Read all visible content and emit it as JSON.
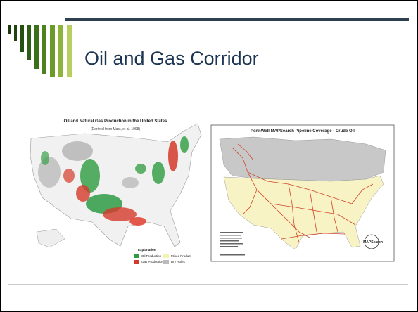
{
  "slide": {
    "title": "Oil and Gas Corridor"
  },
  "left_map": {
    "title": "Oil and Natural Gas Production in the United States",
    "subtitle": "(Derived from Mast, et al. 1998)",
    "legend": {
      "heading": "Explanation",
      "items": [
        "Oil Production",
        "Gas Production",
        "Mixed Product",
        "Dry Holes"
      ]
    }
  },
  "right_map": {
    "title": "PennWell MAPSearch Pipeline Coverage - Crude Oil",
    "logo": "MAPSearch"
  }
}
